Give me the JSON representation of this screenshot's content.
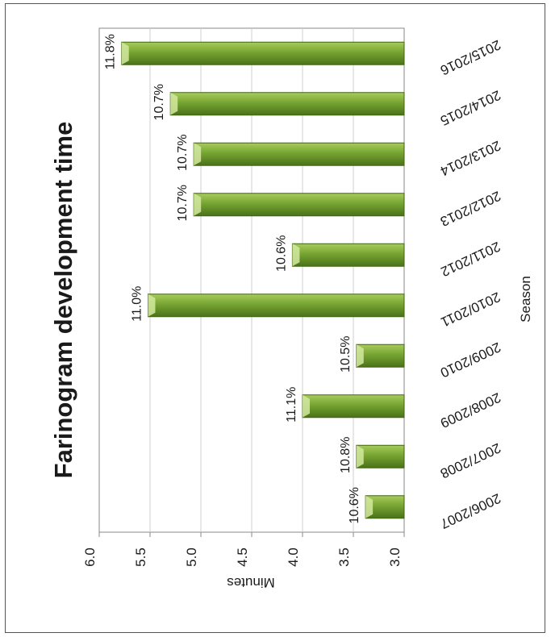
{
  "chart_data": {
    "type": "bar",
    "orientation": "horizontal",
    "title": "Farinogram development time",
    "xlabel": "Season",
    "ylabel": "Minutes",
    "ylim": [
      3.0,
      6.0
    ],
    "y_ticks": [
      "6.0",
      "5.5",
      "5.0",
      "4.5",
      "4.0",
      "3.5",
      "3.0"
    ],
    "grid": true,
    "categories": [
      "2006/2007",
      "2007/2008",
      "2008/2009",
      "2009/2010",
      "2010/2011",
      "2011/2012",
      "2012/2013",
      "2013/2014",
      "2014/2015",
      "2015/2016"
    ],
    "values": [
      3.38,
      3.47,
      4.0,
      3.47,
      5.52,
      4.1,
      5.07,
      5.07,
      5.3,
      5.78
    ],
    "data_labels": [
      "10.6%",
      "10.8%",
      "11.1%",
      "10.5%",
      "11.0%",
      "10.6%",
      "10.7%",
      "10.7%",
      "10.7%",
      "11.8%"
    ],
    "bar_color": "#6f9a2c"
  }
}
